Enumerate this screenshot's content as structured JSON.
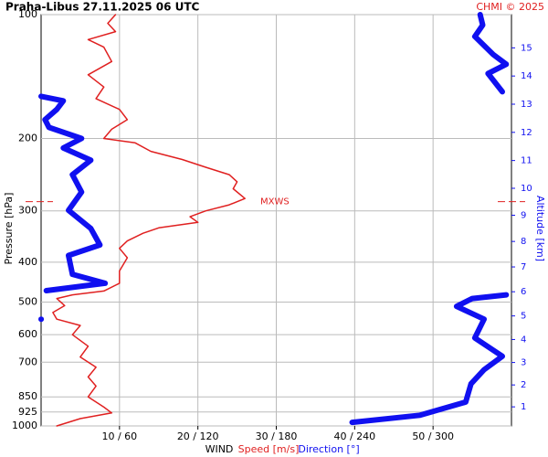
{
  "chart_data": {
    "type": "profile",
    "title": "Praha-Libus   27.11.2025 06 UTC",
    "credit": "CHMI © 2025",
    "ylabel": "Pressure [hPa]",
    "y2label": "Altitude [km]",
    "xlabel": "WIND",
    "ylim": [
      1000,
      100
    ],
    "ylog": true,
    "yticks": [
      100,
      200,
      300,
      400,
      500,
      600,
      700,
      850,
      925,
      1000
    ],
    "xlim": [
      0,
      60
    ],
    "x2lim": [
      0,
      360
    ],
    "xticks": [
      {
        "value": 10,
        "label": "10 / 60"
      },
      {
        "value": 20,
        "label": "20 / 120"
      },
      {
        "value": 30,
        "label": "30 / 180"
      },
      {
        "value": 40,
        "label": "40 / 240"
      },
      {
        "value": 50,
        "label": "50 / 300"
      }
    ],
    "y2ticks": [
      1,
      2,
      3,
      4,
      5,
      6,
      7,
      8,
      9,
      10,
      11,
      12,
      13,
      14,
      15
    ],
    "grid": true,
    "annotation": {
      "text": "MXWS",
      "pressure": 285,
      "color": "#e02020"
    },
    "series": [
      {
        "name": "Speed [m/s]",
        "color": "#e02020",
        "axis": "x",
        "pressure": [
          100,
          105,
          110,
          115,
          120,
          130,
          140,
          150,
          160,
          170,
          180,
          190,
          200,
          205,
          215,
          225,
          235,
          245,
          255,
          265,
          280,
          290,
          300,
          310,
          320,
          330,
          340,
          355,
          370,
          390,
          420,
          450,
          470,
          480,
          490,
          510,
          530,
          550,
          570,
          600,
          640,
          680,
          720,
          760,
          800,
          850,
          900,
          930,
          960,
          1000
        ],
        "values": [
          9.5,
          8.5,
          9.5,
          6,
          8,
          9,
          6,
          8,
          7,
          10,
          11,
          9,
          8,
          12,
          14,
          18,
          21,
          24,
          25,
          24.5,
          26,
          24,
          21,
          19,
          20,
          15,
          13,
          11,
          10,
          11,
          10,
          10,
          8,
          4,
          2,
          3,
          1.5,
          2,
          5,
          4,
          6,
          5,
          7,
          6,
          7,
          6,
          8,
          9,
          5,
          2
        ]
      },
      {
        "name": "Direction [°]",
        "color": "#1010f0",
        "axis": "x2",
        "pressure": [
          100,
          106,
          113,
          125,
          132,
          139,
          154,
          156,
          158,
          162,
          170,
          180,
          188,
          200,
          211,
          226,
          245,
          270,
          299,
          331,
          363,
          385,
          428,
          450,
          469,
          475,
          550,
          555,
          480,
          490,
          512,
          550,
          611,
          677,
          730,
          790,
          875,
          942,
          980
        ],
        "values": [
          336,
          338,
          332,
          346,
          356,
          342,
          353,
          null,
          0,
          17,
          12,
          3,
          6,
          31,
          17,
          38,
          24,
          31,
          21,
          38,
          45,
          21,
          24,
          49,
          4,
          null,
          0,
          null,
          356,
          330,
          318,
          339,
          332,
          353,
          339,
          329,
          325,
          290,
          238
        ]
      }
    ]
  }
}
